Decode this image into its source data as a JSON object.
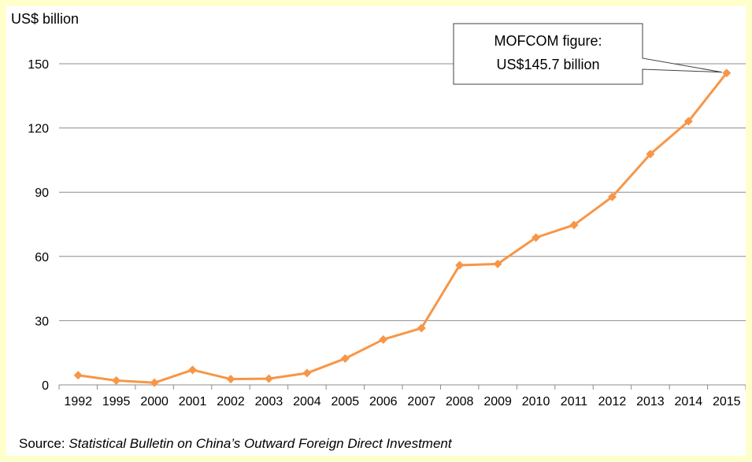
{
  "chart_data": {
    "type": "line",
    "ylabel": "US$ billion",
    "ylim": [
      0,
      150
    ],
    "yticks": [
      0,
      30,
      60,
      90,
      120,
      150
    ],
    "categories": [
      "1992",
      "1995",
      "2000",
      "2001",
      "2002",
      "2003",
      "2004",
      "2005",
      "2006",
      "2007",
      "2008",
      "2009",
      "2010",
      "2011",
      "2012",
      "2013",
      "2014",
      "2015"
    ],
    "series": [
      {
        "values": [
          4.5,
          2.0,
          1.0,
          7.0,
          2.7,
          2.9,
          5.5,
          12.3,
          21.2,
          26.5,
          55.9,
          56.5,
          68.8,
          74.7,
          87.8,
          107.8,
          123.1,
          145.7
        ]
      }
    ],
    "grid": "horizontal",
    "line_color": "#f79646",
    "annotation": {
      "line1": "MOFCOM figure:",
      "line2": "US$145.7 billion",
      "target_category": "2015"
    }
  },
  "source": {
    "prefix": "Source: ",
    "title": "Statistical Bulletin on China’s Outward Foreign Direct Investment"
  }
}
